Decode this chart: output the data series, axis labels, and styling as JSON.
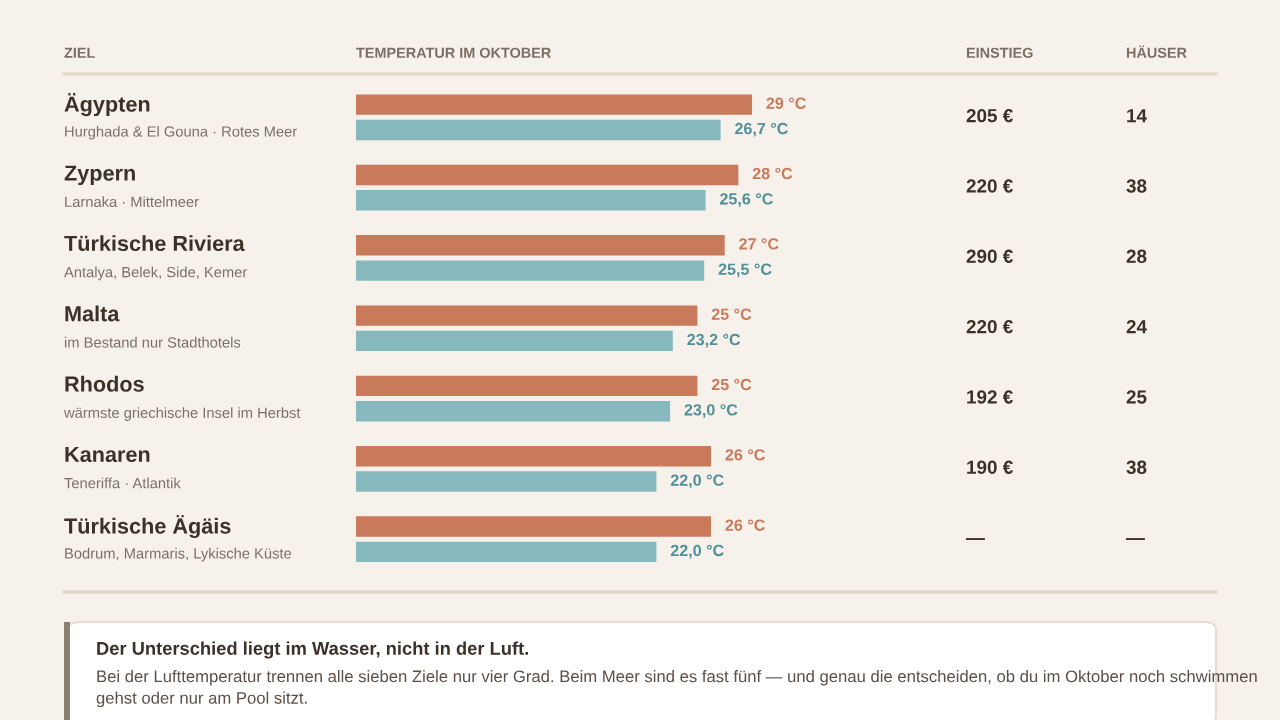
{
  "chart_data": {
    "type": "bar",
    "orientation": "horizontal",
    "ylabel": "ZIEL",
    "xlabel": "TEMPERATUR IM OKTOBER",
    "categories": [
      "Ägypten",
      "Zypern",
      "Türkische Riviera",
      "Malta",
      "Rhodos",
      "Kanaren",
      "Türkische Ägäis"
    ],
    "series": [
      {
        "color": "#c87a5a",
        "values": [
          29,
          28,
          27,
          25,
          25,
          26,
          26
        ],
        "value_labels": [
          "29 °C",
          "28 °C",
          "27 °C",
          "25 °C",
          "25 °C",
          "26 °C",
          "26 °C"
        ]
      },
      {
        "color": "#86b8bd",
        "values": [
          26.7,
          25.6,
          25.5,
          23.2,
          23.0,
          22.0,
          22.0
        ],
        "value_labels": [
          "26,7 °C",
          "25,6 °C",
          "25,5 °C",
          "23,2 °C",
          "23,0 °C",
          "22,0 °C",
          "22,0 °C"
        ]
      }
    ],
    "annotations": [
      "Hurghada & El Gouna · Rotes Meer",
      "Larnaka · Mittelmeer",
      "Antalya, Belek, Side, Kemer",
      "im Bestand nur Stadthotels",
      "wärmste griechische Insel im Herbst",
      "Teneriffa · Atlantik",
      "Bodrum, Marmaris, Lykische Küste",
      "EINSTIEG",
      "HÄUSER",
      "205 €",
      "14",
      "220 €",
      "38",
      "290 €",
      "28",
      "220 €",
      "24",
      "192 €",
      "25",
      "190 €",
      "38",
      "—",
      "—",
      "Der Unterschied liegt im Wasser, nicht in der Luft.",
      "Bei der Lufttemperatur trennen alle sieben Ziele nur vier Grad. Beim Meer sind es fast fünf — und genau die entscheiden, ob du im Oktober noch schwimmen gehst oder nur am Pool sitzt."
    ]
  }
}
